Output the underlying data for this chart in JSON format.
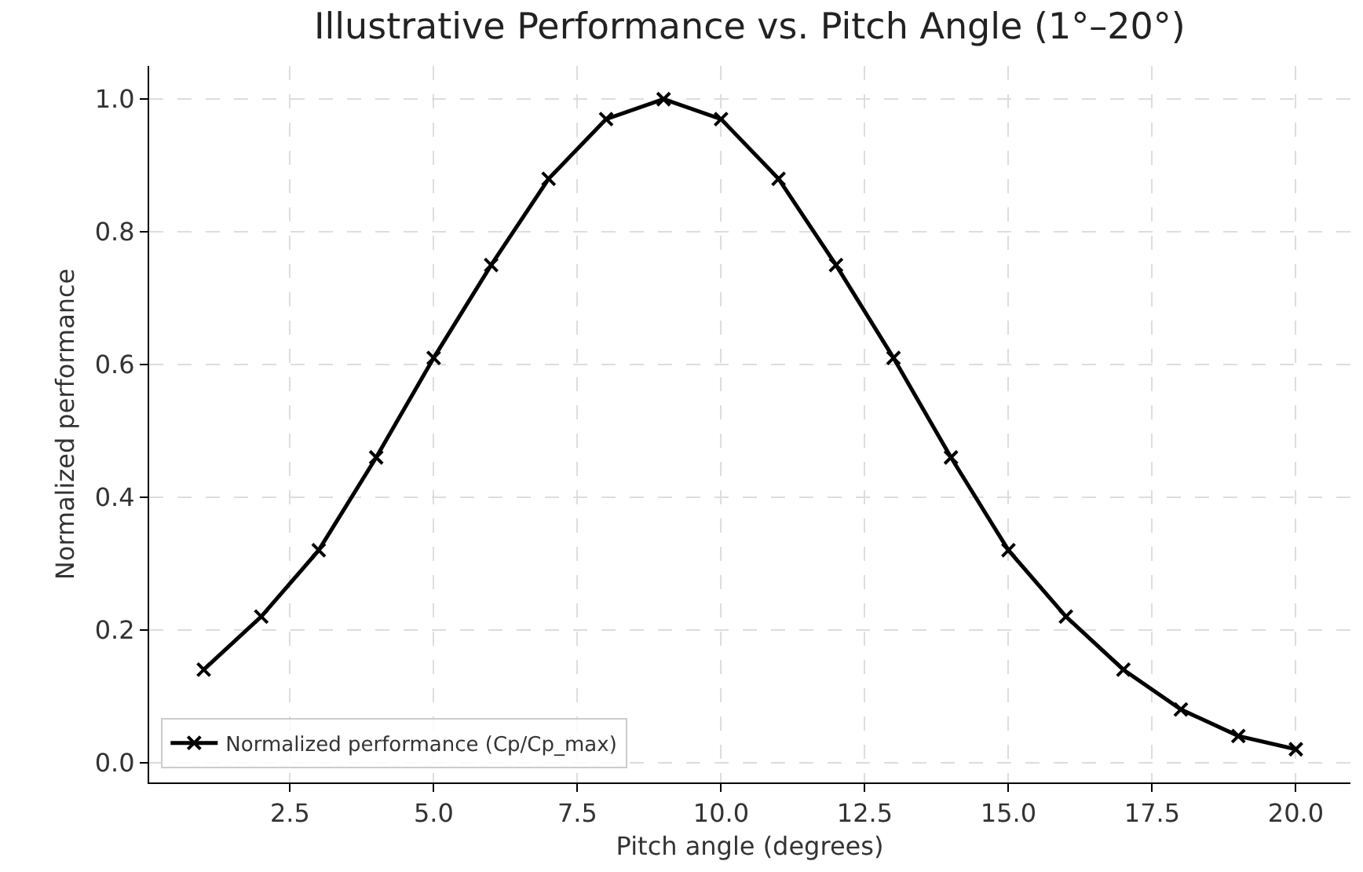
{
  "chart_data": {
    "type": "line",
    "title": "Illustrative Performance vs. Pitch Angle (1°–20°)",
    "xlabel": "Pitch angle (degrees)",
    "ylabel": "Normalized performance",
    "x": [
      1,
      2,
      3,
      4,
      5,
      6,
      7,
      8,
      9,
      10,
      11,
      12,
      13,
      14,
      15,
      16,
      17,
      18,
      19,
      20
    ],
    "series": [
      {
        "name": "Normalized performance (Cp/Cp_max)",
        "color": "#000000",
        "values": [
          0.14,
          0.22,
          0.32,
          0.46,
          0.61,
          0.75,
          0.88,
          0.97,
          1.0,
          0.97,
          0.88,
          0.75,
          0.61,
          0.46,
          0.32,
          0.22,
          0.14,
          0.08,
          0.04,
          0.02
        ]
      }
    ],
    "xlim": [
      0.05,
      20.95
    ],
    "xticks": [
      {
        "value": 2.5,
        "label": "2.5"
      },
      {
        "value": 5,
        "label": "5.0"
      },
      {
        "value": 7.5,
        "label": "7.5"
      },
      {
        "value": 10,
        "label": "10.0"
      },
      {
        "value": 12.5,
        "label": "12.5"
      },
      {
        "value": 15,
        "label": "15.0"
      },
      {
        "value": 17.5,
        "label": "17.5"
      },
      {
        "value": 20,
        "label": "20.0"
      }
    ],
    "ylim": [
      -0.03,
      1.05
    ],
    "yticks": [
      {
        "value": 0,
        "label": "0.0"
      },
      {
        "value": 0.2,
        "label": "0.2"
      },
      {
        "value": 0.4,
        "label": "0.4"
      },
      {
        "value": 0.6,
        "label": "0.6"
      },
      {
        "value": 0.8,
        "label": "0.8"
      },
      {
        "value": 1,
        "label": "1.0"
      }
    ],
    "grid": true,
    "legend": "bottom left",
    "marker": "cross",
    "line_style": "solid"
  }
}
